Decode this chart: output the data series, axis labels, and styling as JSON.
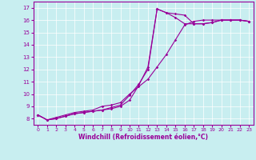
{
  "xlabel": "Windchill (Refroidissement éolien,°C)",
  "ylabel": "",
  "bg_color": "#c8eef0",
  "line_color": "#990099",
  "xlim": [
    -0.5,
    23.5
  ],
  "ylim": [
    7.5,
    17.5
  ],
  "xticks": [
    0,
    1,
    2,
    3,
    4,
    5,
    6,
    7,
    8,
    9,
    10,
    11,
    12,
    13,
    14,
    15,
    16,
    17,
    18,
    19,
    20,
    21,
    22,
    23
  ],
  "yticks": [
    8,
    9,
    10,
    11,
    12,
    13,
    14,
    15,
    16,
    17
  ],
  "line1_x": [
    0,
    1,
    2,
    3,
    4,
    5,
    6,
    7,
    8,
    9,
    10,
    11,
    12,
    13,
    14,
    15,
    16,
    17,
    18,
    19,
    20,
    21,
    22,
    23
  ],
  "line1_y": [
    8.3,
    7.9,
    8.0,
    8.2,
    8.4,
    8.5,
    8.6,
    8.7,
    8.8,
    9.0,
    9.5,
    10.7,
    12.2,
    16.9,
    16.6,
    16.5,
    16.4,
    15.7,
    15.7,
    15.8,
    16.0,
    16.0,
    16.0,
    15.9
  ],
  "line2_x": [
    0,
    1,
    2,
    3,
    4,
    5,
    6,
    7,
    8,
    9,
    10,
    11,
    12,
    13,
    14,
    15,
    16,
    17,
    18,
    19,
    20,
    21,
    22,
    23
  ],
  "line2_y": [
    8.3,
    7.9,
    8.0,
    8.2,
    8.4,
    8.5,
    8.6,
    8.7,
    8.9,
    9.1,
    9.9,
    10.8,
    12.0,
    16.9,
    16.6,
    16.2,
    15.7,
    15.7,
    15.7,
    15.8,
    16.0,
    16.0,
    16.0,
    15.9
  ],
  "line3_x": [
    0,
    1,
    2,
    3,
    4,
    5,
    6,
    7,
    8,
    9,
    10,
    11,
    12,
    13,
    14,
    15,
    16,
    17,
    18,
    19,
    20,
    21,
    22,
    23
  ],
  "line3_y": [
    8.3,
    7.9,
    8.1,
    8.3,
    8.5,
    8.6,
    8.7,
    9.0,
    9.1,
    9.3,
    10.0,
    10.6,
    11.2,
    12.2,
    13.2,
    14.4,
    15.6,
    15.9,
    16.0,
    16.0,
    16.0,
    16.0,
    16.0,
    15.9
  ]
}
